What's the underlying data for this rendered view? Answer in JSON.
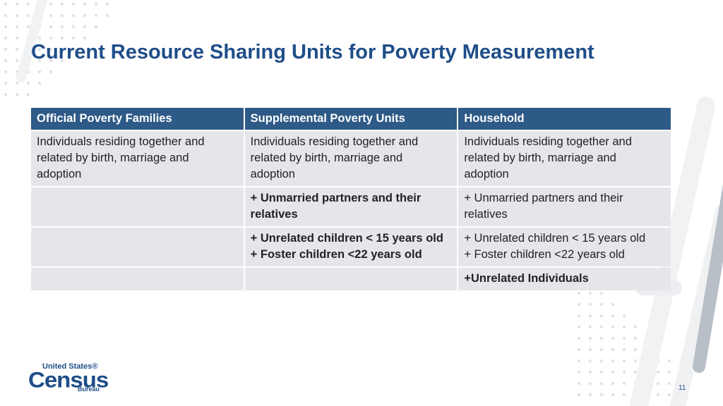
{
  "slide": {
    "title": "Current Resource Sharing Units for Poverty Measurement",
    "page_number": "11"
  },
  "table": {
    "headers": [
      "Official Poverty Families",
      "Supplemental Poverty Units",
      "Household"
    ],
    "rows": [
      [
        {
          "lines": [
            "Individuals residing together and",
            "related by birth, marriage and",
            "adoption"
          ],
          "bold": false
        },
        {
          "lines": [
            "Individuals residing together and",
            "related by birth, marriage and",
            "adoption"
          ],
          "bold": false
        },
        {
          "lines": [
            "Individuals residing together and",
            "related by birth, marriage and",
            "adoption"
          ],
          "bold": false
        }
      ],
      [
        {
          "lines": [],
          "bold": false
        },
        {
          "lines": [
            "+ Unmarried partners and their",
            "relatives"
          ],
          "bold": true
        },
        {
          "lines": [
            "+ Unmarried partners and their",
            "relatives"
          ],
          "bold": false
        }
      ],
      [
        {
          "lines": [],
          "bold": false
        },
        {
          "lines": [
            "+ Unrelated children < 15 years old",
            "+ Foster children <22 years old"
          ],
          "bold": true
        },
        {
          "lines": [
            "+ Unrelated children < 15 years old",
            "+ Foster children <22 years old"
          ],
          "bold": false
        }
      ],
      [
        {
          "lines": [],
          "bold": false
        },
        {
          "lines": [],
          "bold": false
        },
        {
          "lines": [
            "+Unrelated Individuals"
          ],
          "bold": true
        }
      ]
    ]
  },
  "logo": {
    "line1": "United States®",
    "line2": "Census",
    "line3": "Bureau"
  },
  "colors": {
    "title": "#1f4e89",
    "header_bg": "#2e5a87",
    "cell_bg": "#e4e6ea"
  }
}
